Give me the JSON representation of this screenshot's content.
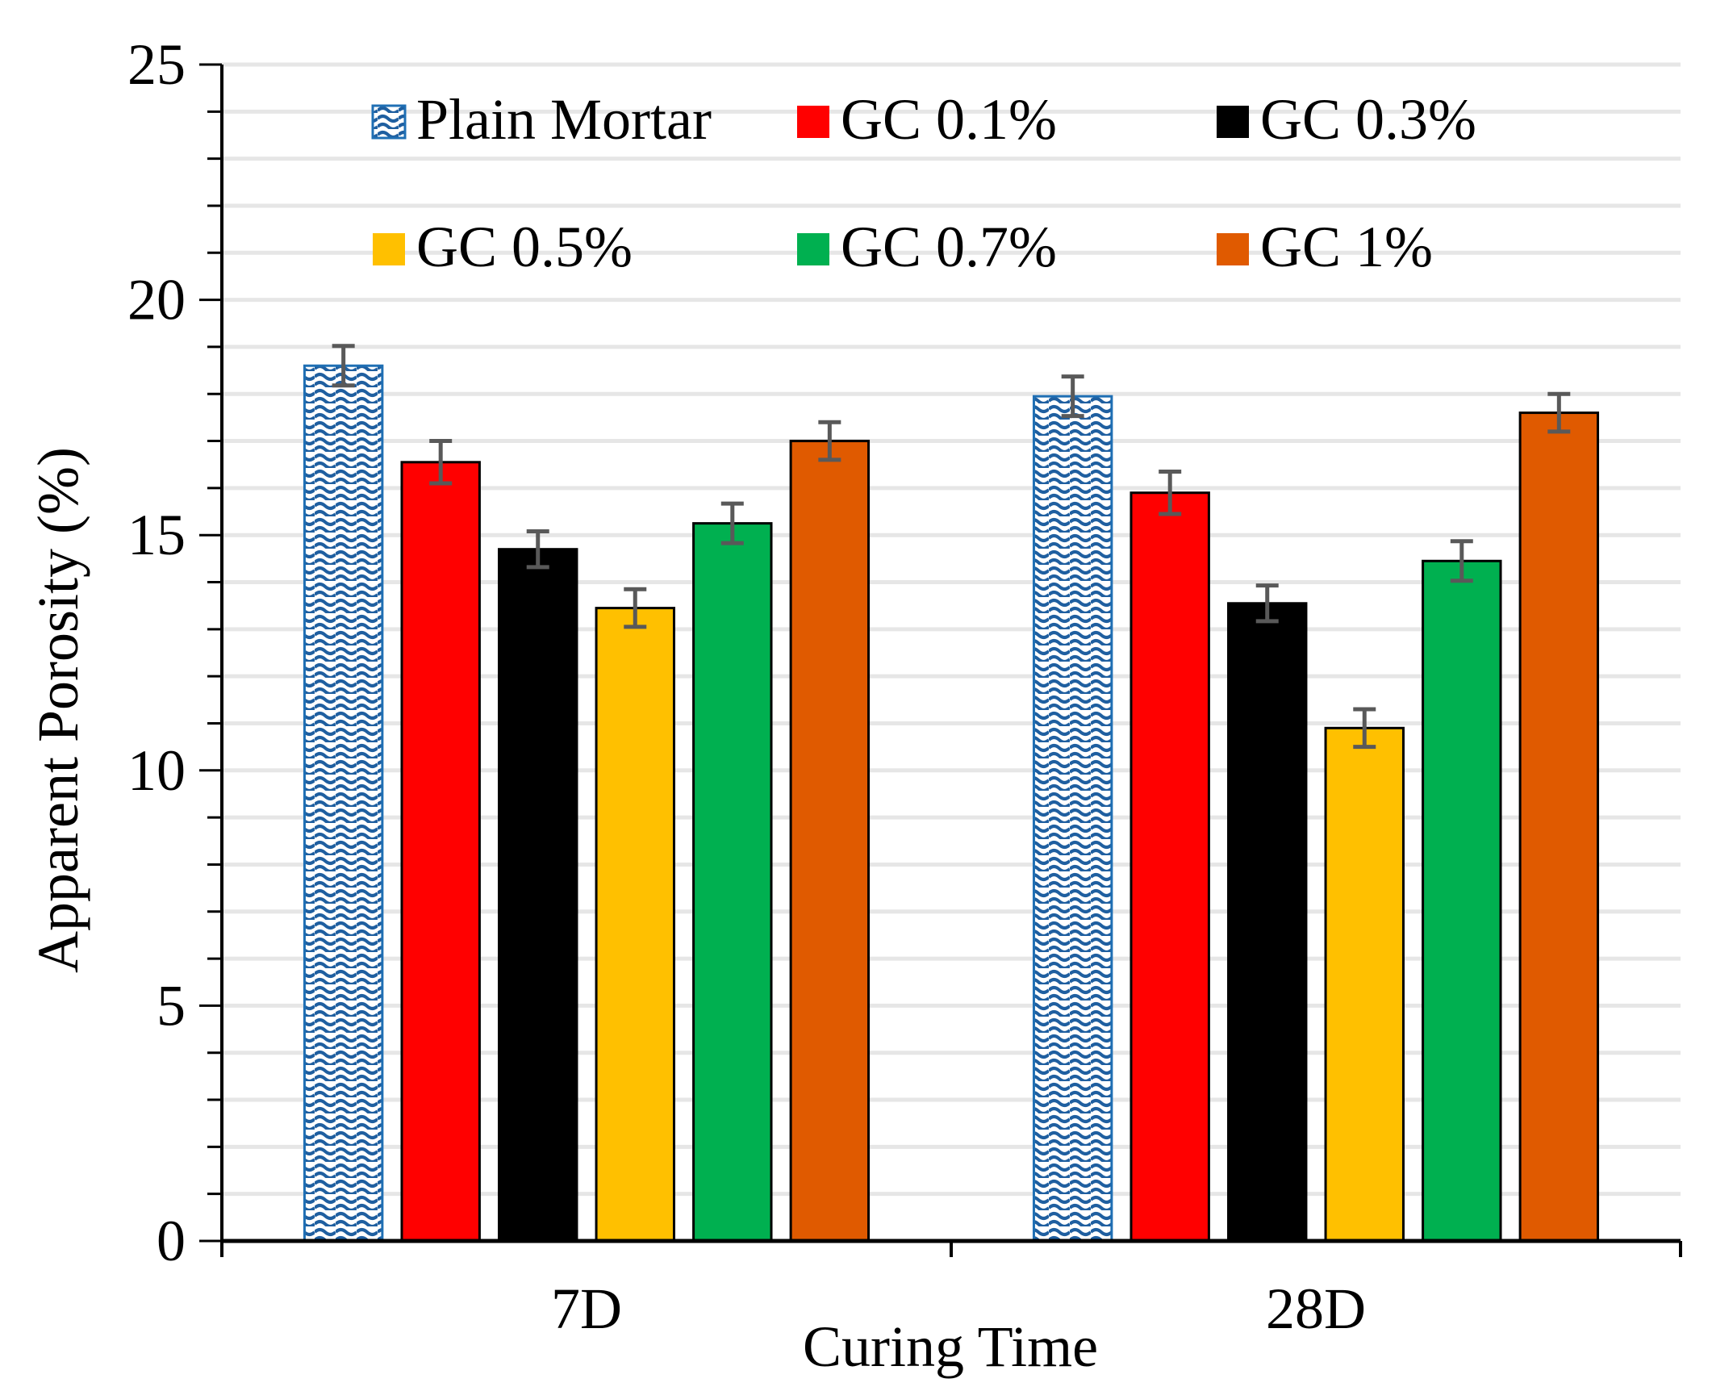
{
  "chart_data": {
    "type": "bar",
    "title": "",
    "xlabel": "Curing Time",
    "ylabel": "Apparent Porosity (%)",
    "ylim": [
      0,
      25
    ],
    "yticks": [
      0,
      5,
      10,
      15,
      20,
      25
    ],
    "grid": true,
    "legend_position": "top",
    "categories": [
      "7D",
      "28D"
    ],
    "series": [
      {
        "name": "Plain Mortar",
        "color": "#ffffff",
        "edge": "#1f6fb4",
        "pattern": "wave-blue",
        "values": [
          18.6,
          17.95
        ],
        "errors": [
          0.42,
          0.42
        ]
      },
      {
        "name": "GC 0.1%",
        "color": "#ff0000",
        "values": [
          16.55,
          15.9
        ],
        "errors": [
          0.45,
          0.45
        ]
      },
      {
        "name": "GC 0.3%",
        "color": "#000000",
        "values": [
          14.7,
          13.55
        ],
        "errors": [
          0.38,
          0.38
        ]
      },
      {
        "name": "GC 0.5%",
        "color": "#ffc000",
        "values": [
          13.45,
          10.9
        ],
        "errors": [
          0.4,
          0.4
        ]
      },
      {
        "name": "GC 0.7%",
        "color": "#00b050",
        "values": [
          15.25,
          14.45
        ],
        "errors": [
          0.42,
          0.42
        ]
      },
      {
        "name": "GC 1%",
        "color": "#e05a00",
        "values": [
          17.0,
          17.6
        ],
        "errors": [
          0.4,
          0.4
        ]
      }
    ]
  }
}
